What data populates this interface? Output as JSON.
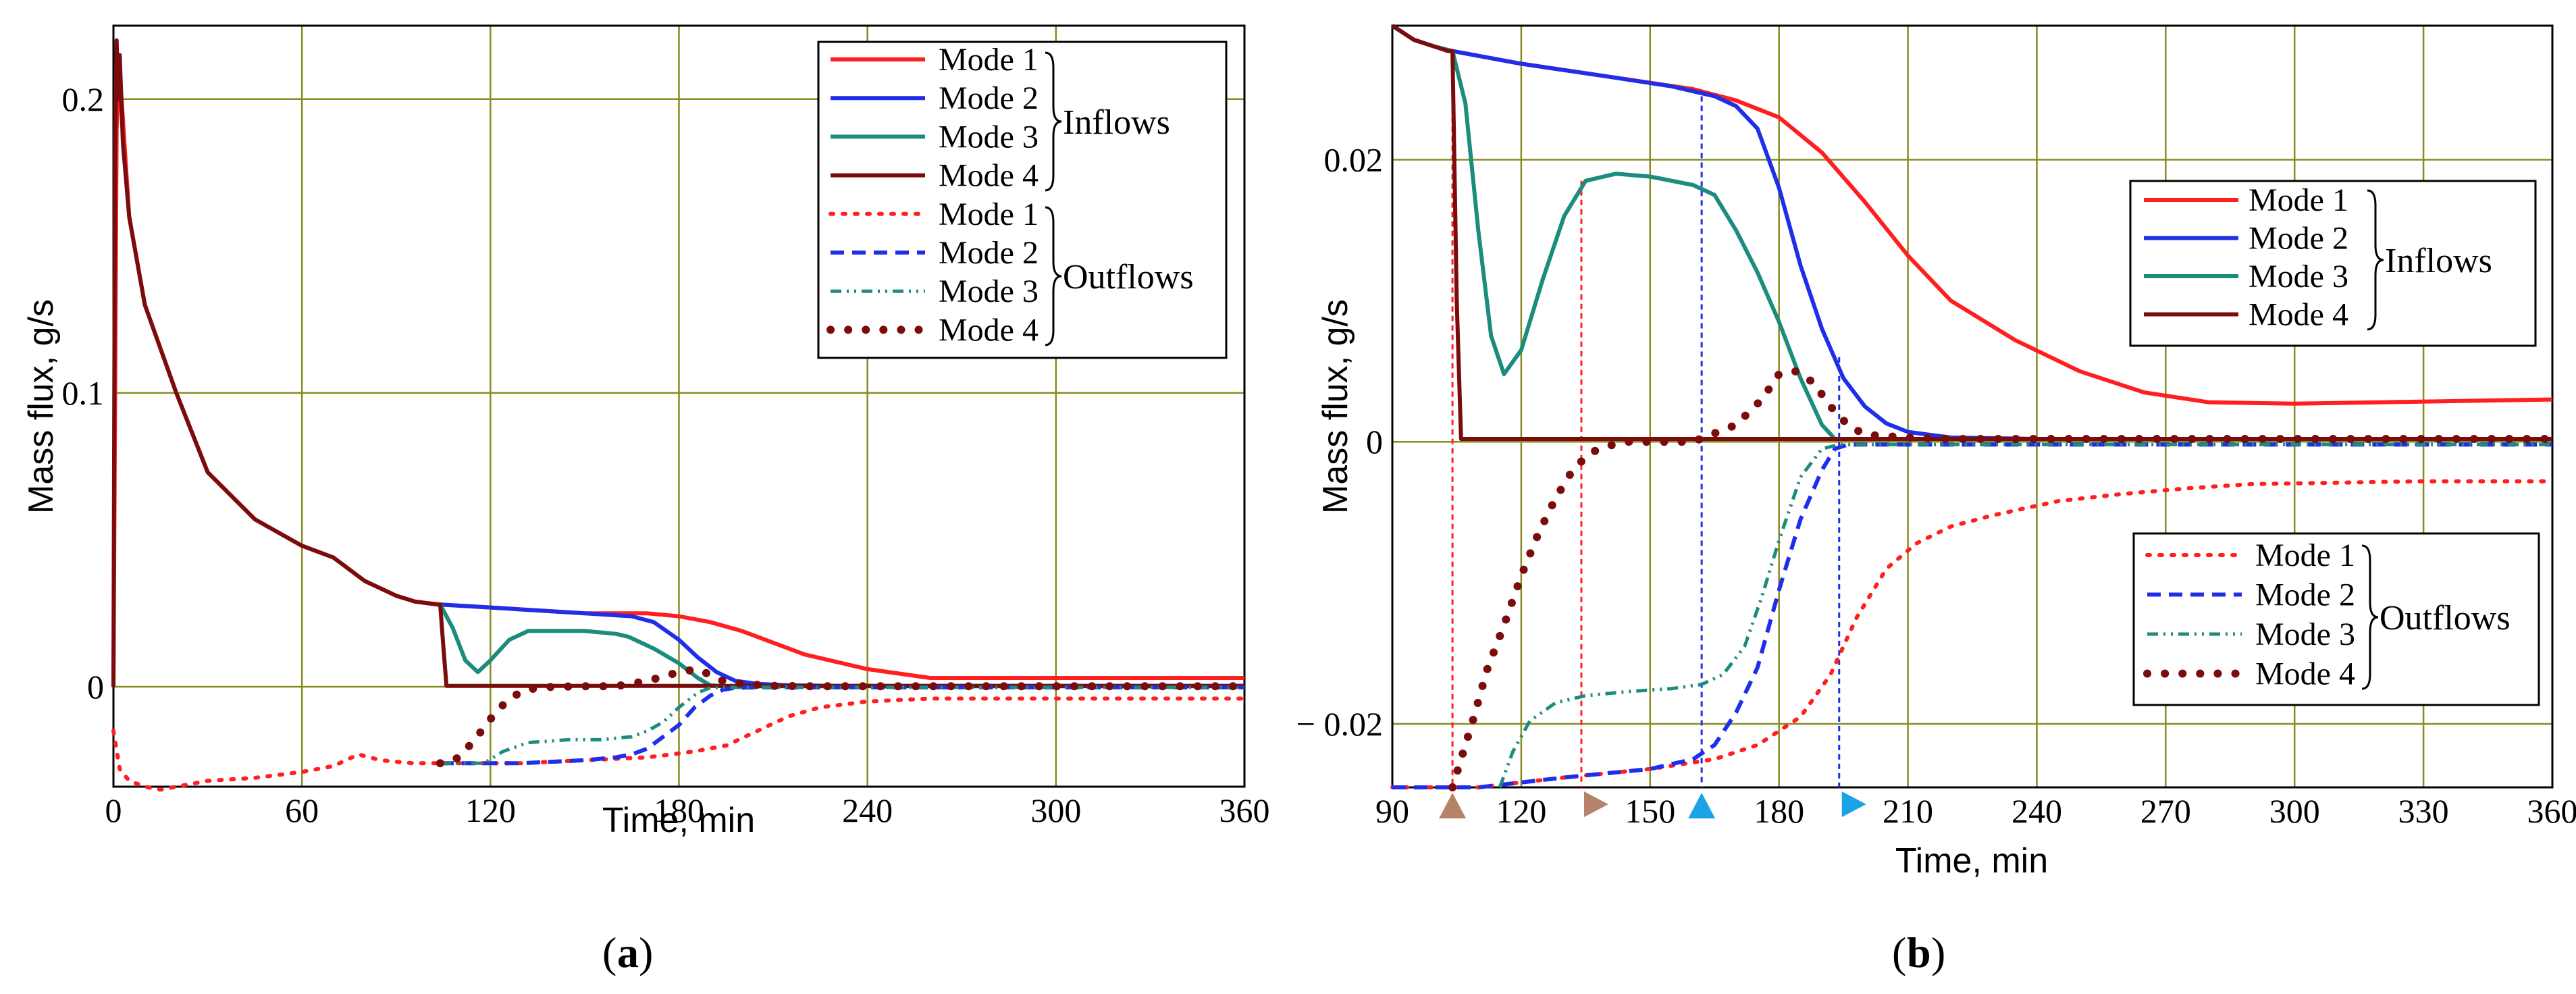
{
  "colors": {
    "mode1": "#ff1f1f",
    "mode2": "#1f2ee8",
    "mode3": "#1b8c7d",
    "mode4": "#7a0c0c",
    "grid": "#8a8a22",
    "marker_brown": "#b5836a",
    "marker_cyan": "#1aa3e6"
  },
  "chart_data": [
    {
      "type": "line",
      "panel": "a",
      "caption_label": "a",
      "xlabel": "Time, min",
      "ylabel": "Mass flux, g/s",
      "xlim": [
        0,
        360
      ],
      "ylim": [
        -0.034,
        0.225
      ],
      "xticks": [
        0,
        60,
        120,
        180,
        240,
        300,
        360
      ],
      "yticks": [
        0,
        0.1,
        0.2
      ],
      "xtick_labels": [
        "0",
        "60",
        "120",
        "180",
        "240",
        "300",
        "360"
      ],
      "ytick_labels": [
        "0",
        "0.1",
        "0.2"
      ],
      "legend": {
        "position": "top-right",
        "inflows_label": "Inflows",
        "outflows_label": "Outflows",
        "entries": [
          "Mode 1",
          "Mode 2",
          "Mode 3",
          "Mode 4",
          "Mode 1",
          "Mode 2",
          "Mode 3",
          "Mode 4"
        ]
      },
      "series": [
        {
          "name": "Mode 1",
          "group": "Inflows",
          "color_key": "mode1",
          "style": "solid",
          "x": [
            0,
            1,
            2,
            5,
            10,
            20,
            30,
            45,
            60,
            70,
            80,
            90,
            96,
            104,
            120,
            150,
            170,
            180,
            190,
            200,
            210,
            220,
            240,
            260,
            280,
            300,
            330,
            360
          ],
          "y": [
            0,
            0.19,
            0.21,
            0.16,
            0.13,
            0.1,
            0.073,
            0.057,
            0.048,
            0.044,
            0.036,
            0.031,
            0.029,
            0.028,
            0.027,
            0.025,
            0.025,
            0.024,
            0.022,
            0.019,
            0.015,
            0.011,
            0.006,
            0.003,
            0.003,
            0.003,
            0.003,
            0.003
          ]
        },
        {
          "name": "Mode 2",
          "group": "Inflows",
          "color_key": "mode2",
          "style": "solid",
          "x": [
            104,
            120,
            150,
            165,
            172,
            180,
            186,
            192,
            198,
            205,
            215,
            230,
            250,
            360
          ],
          "y": [
            0.028,
            0.027,
            0.025,
            0.024,
            0.022,
            0.016,
            0.01,
            0.005,
            0.002,
            0.001,
            0.0005,
            0.0003,
            0.0003,
            0.0003
          ]
        },
        {
          "name": "Mode 3",
          "group": "Inflows",
          "color_key": "mode3",
          "style": "solid",
          "x": [
            104,
            108,
            112,
            116,
            120,
            126,
            132,
            142,
            150,
            160,
            164,
            172,
            180,
            186,
            190,
            194,
            200,
            360
          ],
          "y": [
            0.028,
            0.02,
            0.009,
            0.005,
            0.009,
            0.016,
            0.019,
            0.019,
            0.019,
            0.018,
            0.017,
            0.013,
            0.008,
            0.003,
            0.0005,
            0.0002,
            0.0002,
            0.0002
          ]
        },
        {
          "name": "Mode 4",
          "group": "Inflows",
          "color_key": "mode4",
          "style": "solid",
          "x": [
            0,
            0.5,
            1,
            1.5,
            2,
            3,
            5,
            10,
            20,
            30,
            45,
            60,
            70,
            80,
            90,
            96,
            103,
            104,
            105,
            106,
            360
          ],
          "y": [
            0,
            0.18,
            0.22,
            0.2,
            0.215,
            0.185,
            0.16,
            0.13,
            0.1,
            0.073,
            0.057,
            0.048,
            0.044,
            0.036,
            0.031,
            0.029,
            0.028,
            0.028,
            0.014,
            0.0003,
            0.0003
          ]
        },
        {
          "name": "Mode 1",
          "group": "Outflows",
          "color_key": "mode1",
          "style": "dotted",
          "x": [
            0,
            2,
            5,
            10,
            15,
            20,
            30,
            45,
            60,
            70,
            78,
            85,
            95,
            110,
            130,
            150,
            170,
            185,
            195,
            205,
            215,
            225,
            240,
            260,
            280,
            300,
            330,
            360
          ],
          "y": [
            -0.015,
            -0.028,
            -0.032,
            -0.034,
            -0.035,
            -0.034,
            -0.032,
            -0.031,
            -0.029,
            -0.027,
            -0.023,
            -0.025,
            -0.026,
            -0.026,
            -0.026,
            -0.025,
            -0.024,
            -0.022,
            -0.02,
            -0.015,
            -0.01,
            -0.007,
            -0.005,
            -0.004,
            -0.004,
            -0.004,
            -0.004,
            -0.004
          ]
        },
        {
          "name": "Mode 2",
          "group": "Outflows",
          "color_key": "mode2",
          "style": "dashed",
          "x": [
            104,
            130,
            150,
            160,
            165,
            170,
            175,
            180,
            185,
            190,
            194,
            198,
            205,
            215,
            360
          ],
          "y": [
            -0.026,
            -0.026,
            -0.025,
            -0.024,
            -0.023,
            -0.021,
            -0.017,
            -0.013,
            -0.007,
            -0.003,
            -0.001,
            -0.0003,
            -0.0002,
            -0.0002,
            -0.0002
          ]
        },
        {
          "name": "Mode 3",
          "group": "Outflows",
          "color_key": "mode3",
          "style": "dashdot",
          "x": [
            104,
            112,
            118,
            124,
            132,
            145,
            155,
            165,
            170,
            175,
            180,
            186,
            190,
            194,
            200,
            360
          ],
          "y": [
            -0.026,
            -0.026,
            -0.026,
            -0.022,
            -0.019,
            -0.018,
            -0.018,
            -0.017,
            -0.015,
            -0.012,
            -0.007,
            -0.002,
            -0.0003,
            -0.0002,
            -0.0002,
            -0.0002
          ]
        },
        {
          "name": "Mode 4",
          "group": "Outflows",
          "color_key": "mode4",
          "style": "heavy-dotted",
          "x": [
            104,
            106,
            110,
            115,
            120,
            125,
            130,
            135,
            140,
            150,
            160,
            170,
            180,
            186,
            190,
            194,
            200,
            210,
            220,
            240,
            270,
            300,
            330,
            360
          ],
          "y": [
            -0.026,
            -0.026,
            -0.024,
            -0.018,
            -0.011,
            -0.005,
            -0.0015,
            -0.0003,
            0,
            0.0002,
            0.0002,
            0.002,
            0.005,
            0.006,
            0.004,
            0.002,
            0.001,
            0.0003,
            0.0002,
            0.0002,
            0.0002,
            0.0002,
            0.0002,
            0.0002
          ]
        }
      ]
    },
    {
      "type": "line",
      "panel": "b",
      "caption_label": "b",
      "xlabel": "Time, min",
      "ylabel": "Mass flux, g/s",
      "xlim": [
        90,
        360
      ],
      "ylim": [
        -0.0245,
        0.0295
      ],
      "xticks": [
        90,
        120,
        150,
        180,
        210,
        240,
        270,
        300,
        330,
        360
      ],
      "yticks": [
        -0.02,
        0,
        0.02
      ],
      "xtick_labels": [
        "90",
        "120",
        "150",
        "180",
        "210",
        "240",
        "270",
        "300",
        "330",
        "360"
      ],
      "ytick_labels": [
        "− 0.02",
        "0",
        "0.02"
      ],
      "inflows_legend": {
        "position": "center-right",
        "group_label": "Inflows",
        "entries": [
          "Mode 1",
          "Mode 2",
          "Mode 3",
          "Mode 4"
        ]
      },
      "outflows_legend": {
        "position": "bottom-right",
        "group_label": "Outflows",
        "entries": [
          "Mode 1",
          "Mode 2",
          "Mode 3",
          "Mode 4"
        ]
      },
      "reference_lines": [
        {
          "x": 104,
          "color_key": "mode1",
          "marker": "up-triangle",
          "marker_color_key": "marker_brown"
        },
        {
          "x": 134,
          "color_key": "mode1",
          "marker": "right-triangle",
          "marker_color_key": "marker_brown"
        },
        {
          "x": 162,
          "color_key": "mode2",
          "marker": "up-triangle",
          "marker_color_key": "marker_cyan"
        },
        {
          "x": 194,
          "color_key": "mode2",
          "marker": "right-triangle",
          "marker_color_key": "marker_cyan"
        }
      ],
      "series": [
        {
          "name": "Mode 1",
          "group": "Inflows",
          "color_key": "mode1",
          "style": "solid",
          "x": [
            90,
            95,
            100,
            104,
            120,
            140,
            160,
            170,
            180,
            190,
            200,
            210,
            220,
            235,
            250,
            265,
            280,
            300,
            320,
            340,
            360
          ],
          "y": [
            0.0295,
            0.0285,
            0.028,
            0.0277,
            0.0268,
            0.0259,
            0.025,
            0.0242,
            0.023,
            0.0205,
            0.017,
            0.0132,
            0.01,
            0.0072,
            0.005,
            0.0035,
            0.0028,
            0.0027,
            0.0028,
            0.0029,
            0.003
          ]
        },
        {
          "name": "Mode 2",
          "group": "Inflows",
          "color_key": "mode2",
          "style": "solid",
          "x": [
            90,
            95,
            100,
            104,
            120,
            140,
            155,
            165,
            170,
            175,
            180,
            185,
            190,
            195,
            200,
            205,
            210,
            220,
            240,
            260,
            280,
            360
          ],
          "y": [
            0.0295,
            0.0285,
            0.028,
            0.0277,
            0.0268,
            0.0259,
            0.0252,
            0.0245,
            0.0238,
            0.0222,
            0.018,
            0.0125,
            0.008,
            0.0045,
            0.0025,
            0.0013,
            0.0007,
            0.0003,
            0.0002,
            0.0002,
            0.0002,
            0.0002
          ]
        },
        {
          "name": "Mode 3",
          "group": "Inflows",
          "color_key": "mode3",
          "style": "solid",
          "x": [
            90,
            95,
            100,
            104,
            107,
            110,
            113,
            116,
            120,
            125,
            130,
            135,
            142,
            150,
            160,
            165,
            170,
            175,
            180,
            185,
            190,
            193,
            200,
            220,
            360
          ],
          "y": [
            0.0295,
            0.0285,
            0.028,
            0.0277,
            0.024,
            0.015,
            0.0075,
            0.0048,
            0.0065,
            0.0115,
            0.016,
            0.0185,
            0.019,
            0.0188,
            0.0182,
            0.0175,
            0.015,
            0.012,
            0.0085,
            0.0045,
            0.0012,
            0.0002,
            0.0002,
            0.0002,
            0.0002
          ]
        },
        {
          "name": "Mode 4",
          "group": "Inflows",
          "color_key": "mode4",
          "style": "solid",
          "x": [
            90,
            95,
            100,
            103,
            104,
            105,
            106,
            150,
            200,
            250,
            300,
            360
          ],
          "y": [
            0.0295,
            0.0285,
            0.028,
            0.0277,
            0.0277,
            0.01,
            0.0002,
            0.0002,
            0.0002,
            0.0002,
            0.0002,
            0.0002
          ]
        },
        {
          "name": "Mode 1",
          "group": "Outflows",
          "color_key": "mode1",
          "style": "dotted",
          "x": [
            90,
            110,
            130,
            150,
            165,
            175,
            185,
            192,
            198,
            205,
            212,
            220,
            230,
            245,
            260,
            275,
            290,
            310,
            330,
            360
          ],
          "y": [
            -0.0245,
            -0.0245,
            -0.0238,
            -0.0232,
            -0.0225,
            -0.0215,
            -0.0195,
            -0.0165,
            -0.0125,
            -0.009,
            -0.0072,
            -0.006,
            -0.0052,
            -0.0042,
            -0.0037,
            -0.0033,
            -0.003,
            -0.0029,
            -0.0028,
            -0.0028
          ]
        },
        {
          "name": "Mode 2",
          "group": "Outflows",
          "color_key": "mode2",
          "style": "dashed",
          "x": [
            90,
            110,
            130,
            150,
            160,
            165,
            170,
            175,
            180,
            185,
            190,
            193,
            196,
            205,
            240,
            300,
            360
          ],
          "y": [
            -0.0245,
            -0.0245,
            -0.0238,
            -0.0232,
            -0.0225,
            -0.0215,
            -0.0192,
            -0.016,
            -0.0105,
            -0.0055,
            -0.002,
            -0.0005,
            -0.0002,
            -0.0002,
            -0.0002,
            -0.0002,
            -0.0002
          ]
        },
        {
          "name": "Mode 3",
          "group": "Outflows",
          "color_key": "mode3",
          "style": "dashdot",
          "x": [
            115,
            118,
            122,
            128,
            135,
            145,
            155,
            162,
            167,
            172,
            176,
            180,
            185,
            190,
            194,
            200,
            240,
            300,
            360
          ],
          "y": [
            -0.0245,
            -0.022,
            -0.0198,
            -0.0185,
            -0.018,
            -0.0177,
            -0.0175,
            -0.0172,
            -0.0165,
            -0.0145,
            -0.011,
            -0.007,
            -0.0025,
            -0.0005,
            -0.0002,
            -0.0002,
            -0.0002,
            -0.0002,
            -0.0002
          ]
        },
        {
          "name": "Mode 4",
          "group": "Outflows",
          "color_key": "mode4",
          "style": "heavy-dotted",
          "x": [
            104,
            106,
            109,
            112,
            116,
            120,
            124,
            128,
            132,
            136,
            140,
            145,
            150,
            160,
            170,
            176,
            180,
            184,
            188,
            192,
            196,
            200,
            210,
            220,
            240,
            270,
            300,
            330,
            360
          ],
          "y": [
            -0.0245,
            -0.0225,
            -0.0195,
            -0.0162,
            -0.013,
            -0.0095,
            -0.0065,
            -0.004,
            -0.002,
            -0.0008,
            -0.0003,
            0,
            0,
            0,
            0.0012,
            0.003,
            0.0048,
            0.005,
            0.0042,
            0.0025,
            0.0012,
            0.0005,
            0.0003,
            0.0002,
            0.0002,
            0.0002,
            0.0002,
            0.0002,
            0.0002
          ]
        }
      ]
    }
  ]
}
